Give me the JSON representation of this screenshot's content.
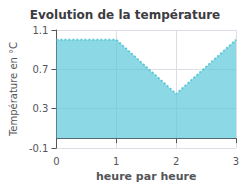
{
  "chart_data": {
    "type": "line",
    "title": "Evolution de la température",
    "xlabel": "heure par heure",
    "ylabel": "Température en °C",
    "x": [
      0,
      1,
      2,
      3
    ],
    "values": [
      1.0,
      1.0,
      0.45,
      1.0
    ],
    "color": "#5bc8d8",
    "line_style": "dotted",
    "xlim": [
      0,
      3
    ],
    "ylim": [
      -0.1,
      1.1
    ],
    "xticks": [
      0,
      1,
      2,
      3
    ],
    "yticks": [
      -0.1,
      0.3,
      0.7,
      1.1
    ],
    "grid": true
  }
}
